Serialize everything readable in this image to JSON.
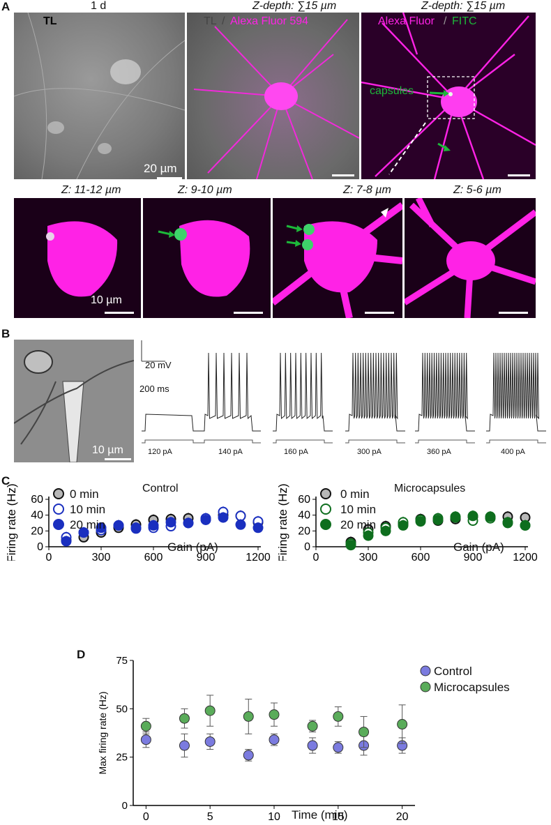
{
  "panelA": {
    "letter": "A",
    "top": {
      "tl_time": "1 d",
      "tl_label": "TL",
      "zdepth1": "Z-depth: ∑15 µm",
      "zdepth2": "Z-depth: ∑15 µm",
      "merge_tl": "TL",
      "merge_sep": "/",
      "merge_alexa": "Alexa Fluor 594",
      "fitc_alexa": "Alexa Fluor",
      "fitc_sep": "/",
      "fitc_fitc": "FITC",
      "capsules_label": "capsules",
      "scale_top": "20 µm"
    },
    "bottom": {
      "z1": "Z: 11-12 µm",
      "z2": "Z: 9-10 µm",
      "z3": "Z: 7-8 µm",
      "z4": "Z: 5-6 µm",
      "scale_bottom": "10 µm"
    }
  },
  "panelB": {
    "letter": "B",
    "scale_image": "10 µm",
    "scale_mv": "20 mV",
    "scale_ms": "200 ms",
    "currents": [
      "120 pA",
      "140 pA",
      "160 pA",
      "300 pA",
      "360 pA",
      "400 pA"
    ],
    "spike_counts": [
      0,
      6,
      9,
      18,
      20,
      22
    ]
  },
  "panelC": {
    "letter": "C",
    "colors": {
      "gray": "#b8b8b8",
      "blue": "#1a2fbf",
      "green": "#0e6e1e"
    },
    "chart_data": [
      {
        "type": "scatter",
        "title": "Control",
        "xlabel": "Gain (pA)",
        "ylabel": "Firing rate (Hz)",
        "xlim": [
          0,
          1200
        ],
        "ylim": [
          0,
          60
        ],
        "xticks": [
          "0",
          "300",
          "600",
          "900",
          "1200"
        ],
        "yticks": [
          "0",
          "20",
          "40",
          "60"
        ],
        "legend": [
          "0 min",
          "10 min",
          "20 min"
        ],
        "x": [
          100,
          200,
          300,
          400,
          500,
          600,
          700,
          800,
          900,
          1000,
          1100,
          1200
        ],
        "series": [
          {
            "name": "0 min",
            "values": [
              8,
              12,
              18,
              24,
              28,
              34,
              35,
              36,
              35,
              40,
              39,
              31
            ]
          },
          {
            "name": "10 min",
            "values": [
              12,
              18,
              21,
              27,
              24,
              24,
              26,
              30,
              36,
              44,
              39,
              32
            ]
          },
          {
            "name": "20 min",
            "values": [
              7,
              18,
              24,
              27,
              23,
              27,
              31,
              30,
              34,
              37,
              28,
              24
            ]
          }
        ]
      },
      {
        "type": "scatter",
        "title": "Microcapsules",
        "xlabel": "Gain (pA)",
        "ylabel": "Firing rate (Hz)",
        "xlim": [
          0,
          1200
        ],
        "ylim": [
          0,
          60
        ],
        "xticks": [
          "0",
          "300",
          "600",
          "900",
          "1200"
        ],
        "yticks": [
          "0",
          "20",
          "40",
          "60"
        ],
        "legend": [
          "0 min",
          "10 min",
          "20 min"
        ],
        "x": [
          200,
          300,
          400,
          500,
          600,
          700,
          800,
          900,
          1000,
          1100,
          1200
        ],
        "series": [
          {
            "name": "0 min",
            "values": [
              6,
              22,
              26,
              29,
              35,
              33,
              35,
              38,
              37,
              38,
              37
            ]
          },
          {
            "name": "10 min",
            "values": [
              4,
              18,
              24,
              31,
              34,
              36,
              37,
              33,
              36,
              30,
              27
            ]
          },
          {
            "name": "20 min",
            "values": [
              2,
              14,
              20,
              27,
              32,
              34,
              38,
              39,
              38,
              31,
              27
            ]
          }
        ]
      }
    ]
  },
  "panelD": {
    "letter": "D",
    "chart_data": {
      "type": "scatter",
      "xlabel": "Time (min)",
      "ylabel": "Max firing rate (Hz)",
      "xlim": [
        -1,
        21
      ],
      "ylim": [
        0,
        75
      ],
      "xticks": [
        "0",
        "5",
        "10",
        "15",
        "20"
      ],
      "yticks": [
        "0",
        "25",
        "50",
        "75"
      ],
      "x": [
        0,
        3,
        5,
        8,
        10,
        13,
        15,
        17,
        20
      ],
      "series": [
        {
          "name": "Control",
          "color": "#7b7bdf",
          "values": [
            34,
            31,
            33,
            26,
            34,
            31,
            30,
            31,
            31
          ],
          "err": [
            4,
            6,
            4,
            3,
            3,
            4,
            3,
            5,
            4
          ]
        },
        {
          "name": "Microcapsules",
          "color": "#5aac5a",
          "values": [
            41,
            45,
            49,
            46,
            47,
            41,
            46,
            38,
            42
          ],
          "err": [
            4,
            5,
            8,
            9,
            6,
            3,
            5,
            8,
            10
          ]
        }
      ]
    }
  }
}
